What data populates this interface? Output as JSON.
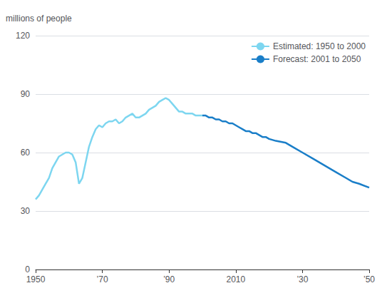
{
  "chart_data": {
    "type": "line",
    "ylabel": "millions of people",
    "xlim": [
      1950,
      2050
    ],
    "xticks": [
      1950,
      {
        "value": 1970,
        "label": "’70"
      },
      {
        "value": 1990,
        "label": "’90"
      },
      2010,
      {
        "value": 2030,
        "label": "’30"
      },
      {
        "value": 2050,
        "label": "’50"
      }
    ],
    "ylim": [
      0,
      120
    ],
    "yticks": [
      0,
      30,
      60,
      90,
      120
    ],
    "grid": true,
    "legend": "upper right",
    "series": [
      {
        "name": "Estimated: 1950 to 2000",
        "color": "#7DD6F0",
        "x": [
          1950,
          1951,
          1952,
          1953,
          1954,
          1955,
          1956,
          1957,
          1958,
          1959,
          1960,
          1961,
          1962,
          1963,
          1964,
          1965,
          1966,
          1967,
          1968,
          1969,
          1970,
          1971,
          1972,
          1973,
          1974,
          1975,
          1976,
          1977,
          1978,
          1979,
          1980,
          1981,
          1982,
          1983,
          1984,
          1985,
          1986,
          1987,
          1988,
          1989,
          1990,
          1991,
          1992,
          1993,
          1994,
          1995,
          1996,
          1997,
          1998,
          1999,
          2000
        ],
        "values": [
          36,
          38,
          41,
          44,
          47,
          52,
          55,
          58,
          59,
          60,
          60,
          59,
          55,
          44,
          47,
          55,
          63,
          68,
          72,
          74,
          73,
          75,
          76,
          76,
          77,
          75,
          76,
          78,
          79,
          80,
          78,
          78,
          79,
          80,
          82,
          83,
          84,
          86,
          87,
          88,
          87,
          85,
          83,
          81,
          81,
          80,
          80,
          80,
          79,
          79,
          79
        ]
      },
      {
        "name": "Forecast: 2001 to 2050",
        "color": "#1A7EC8",
        "x": [
          2000,
          2001,
          2002,
          2003,
          2004,
          2005,
          2006,
          2007,
          2008,
          2009,
          2010,
          2011,
          2012,
          2013,
          2014,
          2015,
          2016,
          2017,
          2018,
          2019,
          2020,
          2022,
          2025,
          2027,
          2030,
          2033,
          2035,
          2038,
          2040,
          2043,
          2045,
          2047,
          2050
        ],
        "values": [
          79,
          79,
          78,
          78,
          77,
          77,
          76,
          76,
          75,
          75,
          74,
          73,
          72,
          71,
          71,
          70,
          70,
          69,
          68,
          68,
          67,
          66,
          65,
          63,
          60,
          57,
          55,
          52,
          50,
          47,
          45,
          44,
          42
        ]
      }
    ]
  }
}
